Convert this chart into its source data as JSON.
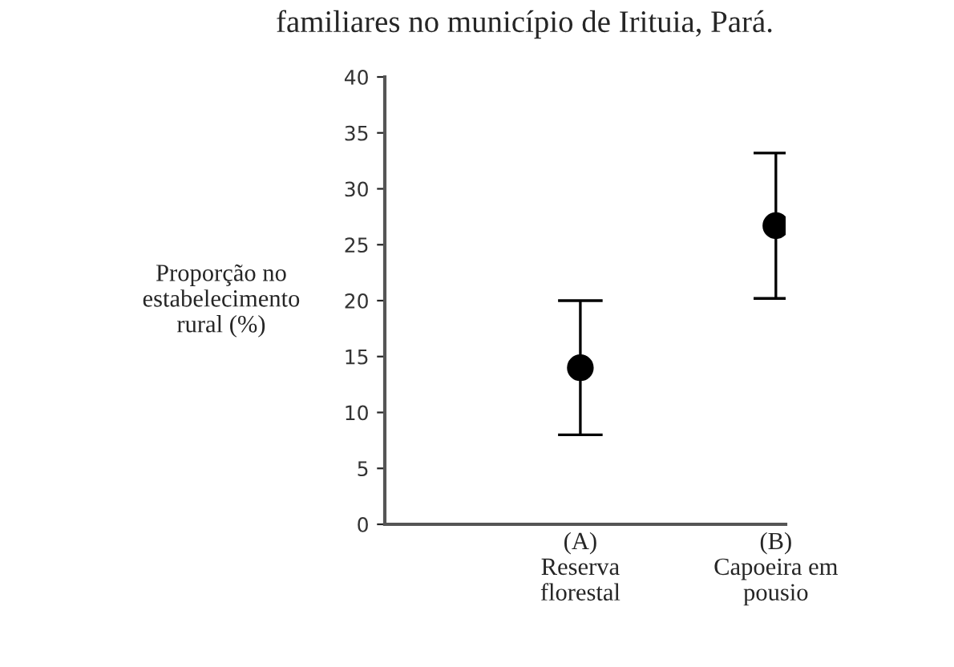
{
  "chart_data": {
    "type": "scatter",
    "title": "familiares no município de Irituia, Pará.",
    "ylabel": "Proporção no\nestabelecimento\nrural (%)",
    "categories": [
      "(A)\nReserva\nflorestal",
      "(B)\nCapoeira em\npousio"
    ],
    "values": [
      14,
      26.7
    ],
    "errors": [
      6,
      6.5
    ],
    "color": "#000000",
    "marker": "circle",
    "ylim": [
      0,
      40
    ],
    "yticks": [
      0,
      5,
      10,
      15,
      20,
      25,
      30,
      35,
      40
    ],
    "grid": false
  }
}
